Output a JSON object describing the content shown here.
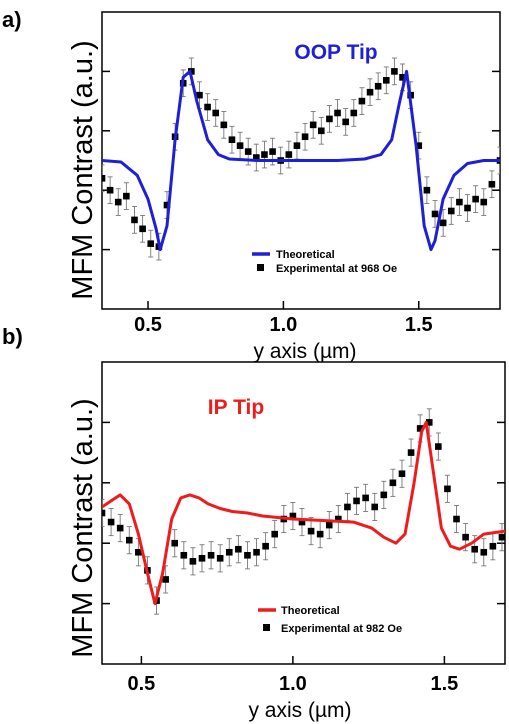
{
  "chart_data": [
    {
      "type": "line",
      "panel_label": "a)",
      "annotation": "OOP Tip",
      "annotation_color": "#1f1fd6",
      "xlabel": "y axis (µm)",
      "ylabel": "MFM Contrast (a.u.)",
      "xlim": [
        0.33,
        1.8
      ],
      "ylim": [
        0,
        1
      ],
      "xticks": [
        0.5,
        1.0,
        1.5
      ],
      "xtick_labels": [
        "0.5",
        "1.0",
        "1.5"
      ],
      "yticks": [
        0.2,
        0.4,
        0.6,
        0.8
      ],
      "legend_position": "lower-center",
      "series": [
        {
          "name": "Theoretical",
          "style": "line",
          "color": "#1f1fd6",
          "x": [
            0.33,
            0.4,
            0.46,
            0.5,
            0.53,
            0.545,
            0.57,
            0.6,
            0.63,
            0.655,
            0.68,
            0.72,
            0.76,
            0.8,
            0.9,
            1.0,
            1.1,
            1.2,
            1.3,
            1.36,
            1.4,
            1.43,
            1.455,
            1.49,
            1.52,
            1.545,
            1.56,
            1.59,
            1.63,
            1.68,
            1.74,
            1.8
          ],
          "y": [
            0.5,
            0.495,
            0.45,
            0.37,
            0.27,
            0.2,
            0.28,
            0.57,
            0.78,
            0.8,
            0.7,
            0.57,
            0.52,
            0.505,
            0.5,
            0.5,
            0.5,
            0.5,
            0.505,
            0.52,
            0.57,
            0.7,
            0.8,
            0.55,
            0.28,
            0.2,
            0.23,
            0.37,
            0.45,
            0.49,
            0.5,
            0.5
          ]
        },
        {
          "name": "Experimental at 968 Oe",
          "style": "markers-errorbars",
          "color": "#000000",
          "error": 0.045,
          "x": [
            0.33,
            0.36,
            0.39,
            0.42,
            0.45,
            0.48,
            0.51,
            0.54,
            0.57,
            0.6,
            0.63,
            0.66,
            0.69,
            0.72,
            0.75,
            0.78,
            0.81,
            0.84,
            0.87,
            0.9,
            0.93,
            0.96,
            0.99,
            1.02,
            1.05,
            1.08,
            1.11,
            1.14,
            1.17,
            1.2,
            1.23,
            1.26,
            1.29,
            1.32,
            1.35,
            1.38,
            1.41,
            1.44,
            1.47,
            1.5,
            1.53,
            1.56,
            1.59,
            1.62,
            1.65,
            1.68,
            1.71,
            1.74,
            1.77,
            1.8
          ],
          "y": [
            0.44,
            0.4,
            0.36,
            0.38,
            0.3,
            0.27,
            0.22,
            0.21,
            0.35,
            0.58,
            0.76,
            0.8,
            0.72,
            0.68,
            0.66,
            0.62,
            0.57,
            0.55,
            0.53,
            0.51,
            0.52,
            0.53,
            0.5,
            0.52,
            0.55,
            0.58,
            0.62,
            0.6,
            0.64,
            0.66,
            0.63,
            0.66,
            0.7,
            0.73,
            0.75,
            0.77,
            0.8,
            0.78,
            0.72,
            0.55,
            0.4,
            0.32,
            0.29,
            0.33,
            0.36,
            0.34,
            0.37,
            0.36,
            0.42,
            0.5
          ]
        }
      ]
    },
    {
      "type": "line",
      "panel_label": "b)",
      "annotation": "IP  Tip",
      "annotation_color": "#ee1c1c",
      "xlabel": "y axis (µm)",
      "ylabel": "MFM Contrast (a.u.)",
      "xlim": [
        0.37,
        1.7
      ],
      "ylim": [
        0,
        1
      ],
      "xticks": [
        0.5,
        1.0,
        1.5
      ],
      "xtick_labels": [
        "0.5",
        "1.0",
        "1.5"
      ],
      "yticks": [
        0.2,
        0.4,
        0.6,
        0.8
      ],
      "legend_position": "lower-center",
      "series": [
        {
          "name": "Theoretical",
          "style": "line",
          "color": "#ee1c1c",
          "x": [
            0.37,
            0.4,
            0.43,
            0.46,
            0.49,
            0.52,
            0.545,
            0.57,
            0.6,
            0.63,
            0.66,
            0.69,
            0.72,
            0.76,
            0.8,
            0.85,
            0.9,
            1.0,
            1.1,
            1.2,
            1.26,
            1.3,
            1.34,
            1.37,
            1.4,
            1.425,
            1.44,
            1.46,
            1.49,
            1.52,
            1.55,
            1.59,
            1.63,
            1.7
          ],
          "y": [
            0.52,
            0.54,
            0.56,
            0.53,
            0.43,
            0.3,
            0.2,
            0.3,
            0.48,
            0.55,
            0.56,
            0.55,
            0.53,
            0.515,
            0.505,
            0.5,
            0.49,
            0.48,
            0.475,
            0.47,
            0.45,
            0.42,
            0.4,
            0.43,
            0.6,
            0.77,
            0.8,
            0.66,
            0.45,
            0.39,
            0.38,
            0.4,
            0.43,
            0.44
          ]
        },
        {
          "name": "Experimental at 982 Oe",
          "style": "markers-errorbars",
          "color": "#000000",
          "error": 0.045,
          "x": [
            0.37,
            0.4,
            0.43,
            0.46,
            0.49,
            0.52,
            0.55,
            0.58,
            0.61,
            0.64,
            0.67,
            0.7,
            0.73,
            0.76,
            0.79,
            0.82,
            0.85,
            0.88,
            0.91,
            0.94,
            0.97,
            1.0,
            1.03,
            1.06,
            1.09,
            1.12,
            1.15,
            1.18,
            1.21,
            1.24,
            1.27,
            1.3,
            1.33,
            1.36,
            1.39,
            1.42,
            1.45,
            1.48,
            1.51,
            1.54,
            1.57,
            1.6,
            1.63,
            1.66,
            1.69
          ],
          "y": [
            0.5,
            0.47,
            0.45,
            0.41,
            0.37,
            0.31,
            0.21,
            0.28,
            0.4,
            0.36,
            0.34,
            0.35,
            0.36,
            0.35,
            0.37,
            0.38,
            0.36,
            0.37,
            0.39,
            0.43,
            0.48,
            0.49,
            0.47,
            0.44,
            0.43,
            0.46,
            0.48,
            0.52,
            0.54,
            0.55,
            0.52,
            0.56,
            0.6,
            0.63,
            0.7,
            0.78,
            0.8,
            0.72,
            0.58,
            0.48,
            0.42,
            0.38,
            0.37,
            0.39,
            0.42
          ]
        }
      ]
    }
  ]
}
